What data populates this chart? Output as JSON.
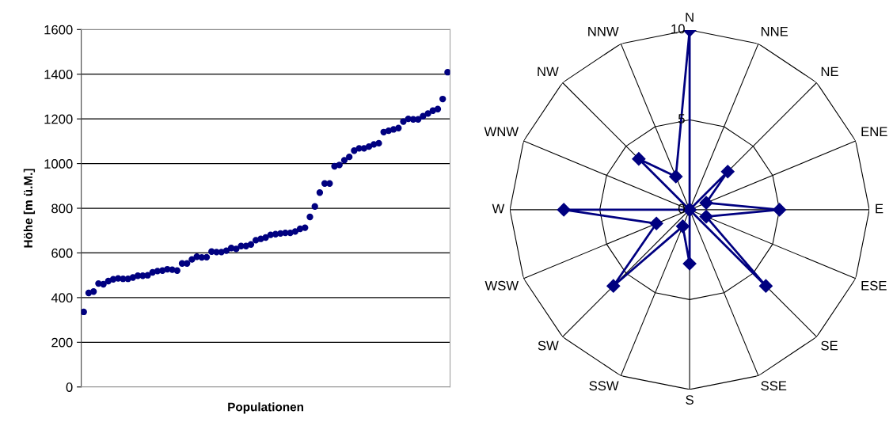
{
  "chart_data": [
    {
      "type": "scatter",
      "xlabel": "Populationen",
      "ylabel": "Höhe [m ü.M.]",
      "ylim": [
        0,
        1600
      ],
      "yticks": [
        0,
        200,
        400,
        600,
        800,
        1000,
        1200,
        1400,
        1600
      ],
      "grid": "y",
      "marker": "circle",
      "tick_labels": "y",
      "categories": [
        null,
        null,
        null,
        null,
        null,
        null,
        null,
        null,
        null,
        null,
        null,
        null,
        null,
        null,
        null,
        null,
        null,
        null,
        null,
        null,
        null,
        null,
        null,
        null,
        null,
        null,
        null,
        null,
        null,
        null,
        null,
        null,
        null,
        null,
        null,
        null,
        null,
        null,
        null,
        null,
        null,
        null,
        null,
        null,
        null,
        null,
        null,
        null,
        null,
        null,
        null,
        null,
        null,
        null,
        null,
        null,
        null,
        null,
        null,
        null,
        null,
        null,
        null,
        null,
        null,
        null,
        null,
        null,
        null,
        null,
        null,
        null,
        null,
        null,
        null
      ],
      "series": [
        {
          "color": "#000080",
          "values": [
            336,
            421,
            427,
            463,
            460,
            474,
            482,
            486,
            484,
            484,
            490,
            498,
            498,
            500,
            513,
            519,
            521,
            527,
            525,
            521,
            553,
            553,
            571,
            583,
            580,
            581,
            606,
            604,
            604,
            610,
            622,
            618,
            631,
            631,
            638,
            657,
            663,
            669,
            681,
            684,
            687,
            690,
            690,
            696,
            708,
            713,
            761,
            808,
            870,
            911,
            911,
            988,
            994,
            1015,
            1030,
            1058,
            1068,
            1068,
            1076,
            1086,
            1091,
            1141,
            1147,
            1153,
            1159,
            1188,
            1200,
            1198,
            1198,
            1212,
            1224,
            1237,
            1244,
            1289,
            1409
          ]
        }
      ]
    },
    {
      "type": "radar",
      "categories": [
        "N",
        "NNE",
        "NE",
        "ENE",
        "E",
        "ESE",
        "SE",
        "SSE",
        "S",
        "SSW",
        "SW",
        "WSW",
        "W",
        "WNW",
        "NW",
        "NNW"
      ],
      "ylim": [
        0,
        10
      ],
      "yticks": [
        0,
        5,
        10
      ],
      "grid": true,
      "marker": "diamond",
      "line_style": "solid",
      "series": [
        {
          "color": "#000080",
          "values": [
            10,
            0,
            3,
            1,
            5,
            1,
            6,
            0,
            3,
            1,
            6,
            2,
            7,
            0,
            4,
            2
          ]
        }
      ]
    }
  ]
}
